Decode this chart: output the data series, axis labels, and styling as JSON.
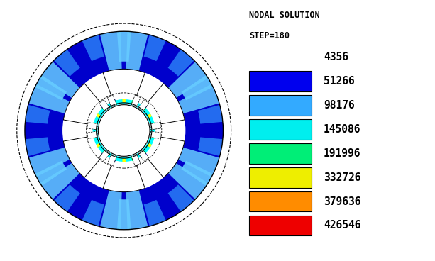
{
  "legend_labels": [
    "4356",
    "51266",
    "98176",
    "145086",
    "191996",
    "332726",
    "379636",
    "426546"
  ],
  "legend_colors": [
    "#0000EE",
    "#33AAFF",
    "#00EEEE",
    "#00EE77",
    "#EEEE00",
    "#FF8C00",
    "#EE0000"
  ],
  "bg_color": "#FFFFFF",
  "fig_width": 6.13,
  "fig_height": 3.68,
  "dpi": 100,
  "n_slots": 6,
  "slot_angles_deg": [
    90,
    150,
    210,
    270,
    330,
    30
  ],
  "outer_r": 1.0,
  "yoke_inner_r": 0.62,
  "slot_outer_r": 0.62,
  "slot_inner_r": 0.28,
  "bore_r": 0.26,
  "slot_half_deg": 20,
  "dashed_r": 1.07,
  "c_darkblue": "#0000CC",
  "c_medblue": "#3399FF",
  "c_lightblue": "#66CCFF",
  "c_cyan": "#00FFFF",
  "c_green": "#00FF66",
  "c_yellow": "#FFFF00",
  "tooth_arc_half": 10
}
